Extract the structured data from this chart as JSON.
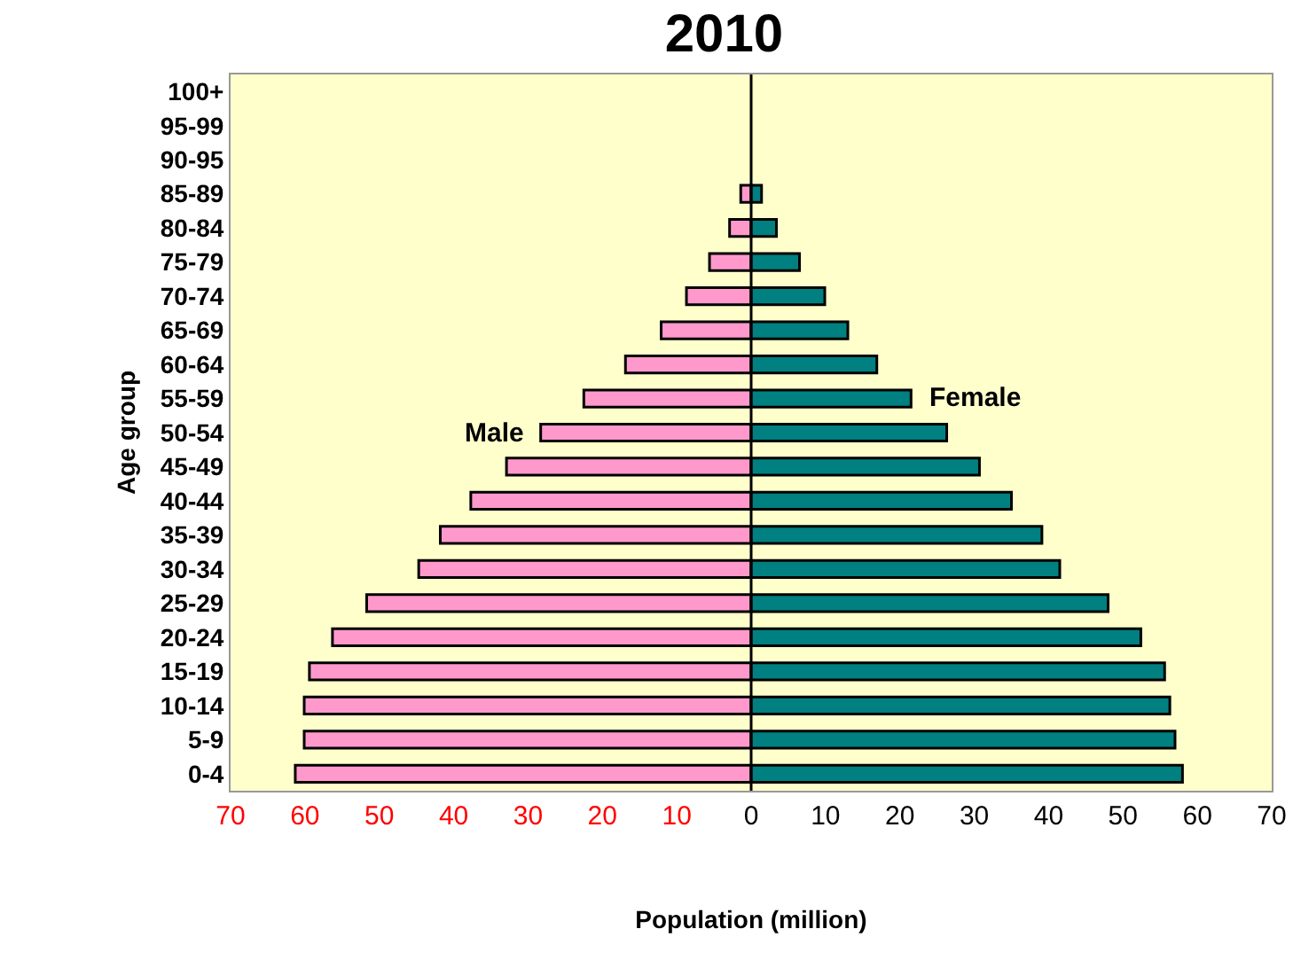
{
  "chart_data": {
    "type": "bar",
    "orientation": "horizontal",
    "title": "2010",
    "xlabel": "Population (million)",
    "ylabel": "Age group",
    "stacked": true,
    "ref_lines": [
      {
        "axis": "x",
        "value": 0,
        "color": "#000000"
      }
    ],
    "categories": [
      "100+",
      "95-99",
      "90-95",
      "85-89",
      "80-84",
      "75-79",
      "70-74",
      "65-69",
      "60-64",
      "55-59",
      "50-54",
      "45-49",
      "40-44",
      "35-39",
      "30-34",
      "25-29",
      "20-24",
      "15-19",
      "10-14",
      "5-9",
      "0-4"
    ],
    "series": [
      {
        "name": "Male",
        "color": "#ff99cc",
        "values": [
          0,
          0,
          null,
          -1.4,
          -2.9,
          -5.6,
          -8.7,
          -12.1,
          -16.9,
          -22.5,
          -28.3,
          -32.9,
          -37.7,
          -41.8,
          -44.7,
          -51.7,
          -56.3,
          -59.4,
          -60.1,
          -60.1,
          -61.3
        ]
      },
      {
        "name": "Female",
        "color": "#008080",
        "values": [
          0,
          0,
          null,
          1.4,
          3.4,
          6.5,
          9.9,
          13,
          16.9,
          21.5,
          26.3,
          30.7,
          35,
          39.1,
          41.5,
          48,
          52.4,
          55.6,
          56.3,
          57,
          58
        ]
      }
    ],
    "xlim": [
      -70,
      70
    ],
    "xticks": [
      {
        "value": -70,
        "label": "70"
      },
      {
        "value": -60,
        "label": "60"
      },
      {
        "value": -50,
        "label": "50"
      },
      {
        "value": -40,
        "label": "40"
      },
      {
        "value": -30,
        "label": "30"
      },
      {
        "value": -20,
        "label": "20"
      },
      {
        "value": -10,
        "label": "10"
      },
      0,
      10,
      20,
      30,
      40,
      50,
      60,
      70
    ],
    "grid": false
  }
}
